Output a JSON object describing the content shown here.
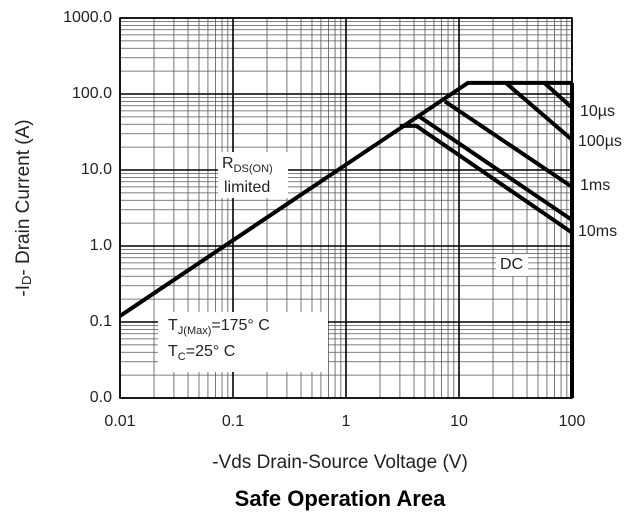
{
  "chart_data": {
    "type": "line",
    "title": "Safe Operation Area",
    "x_label": "-Vds Drain-Source Voltage (V)",
    "y_label": {
      "pre": "-I",
      "sub": "D",
      "post": "- Drain Current (A)"
    },
    "log_x": true,
    "log_y": true,
    "grid": true,
    "minor_grid": true,
    "xlim": [
      0.01,
      100
    ],
    "ylim": [
      0.01,
      1000
    ],
    "xticks": [
      0.01,
      0.1,
      1,
      10,
      100
    ],
    "yticks": [
      {
        "value": 0.01,
        "label": "0.0"
      },
      0.1,
      {
        "value": 1,
        "label": "1.0"
      },
      {
        "value": 10,
        "label": "10.0"
      },
      {
        "value": 100,
        "label": "100.0"
      },
      {
        "value": 1000,
        "label": "1000.0"
      }
    ],
    "series": [
      {
        "color": "#000000",
        "x": [
          0.01,
          12,
          100
        ],
        "y": [
          0.12,
          140,
          140
        ]
      },
      {
        "color": "#000000",
        "x": [
          100,
          100
        ],
        "y": [
          140,
          0.01
        ]
      },
      {
        "name": "10µs",
        "color": "#000000",
        "x": [
          57,
          100
        ],
        "y": [
          140,
          66
        ]
      },
      {
        "name": "100µs",
        "color": "#000000",
        "x": [
          26,
          100
        ],
        "y": [
          140,
          25
        ]
      },
      {
        "name": "1ms",
        "color": "#000000",
        "x": [
          7.5,
          100
        ],
        "y": [
          80,
          6
        ]
      },
      {
        "name": "10ms",
        "color": "#000000",
        "x": [
          4.5,
          100
        ],
        "y": [
          50,
          2.2
        ]
      },
      {
        "name": "DC",
        "color": "#000000",
        "x": [
          3,
          4.2,
          100
        ],
        "y": [
          38,
          38,
          1.5
        ]
      }
    ],
    "annotations": {
      "rds": {
        "main": "R",
        "sub": "DS(ON)",
        "line2": "limited"
      },
      "tj": {
        "main": "T",
        "sub": "J(Max)",
        "rest": "=175° C"
      },
      "tc": {
        "main": "T",
        "sub": "C",
        "rest": "=25° C"
      }
    }
  }
}
